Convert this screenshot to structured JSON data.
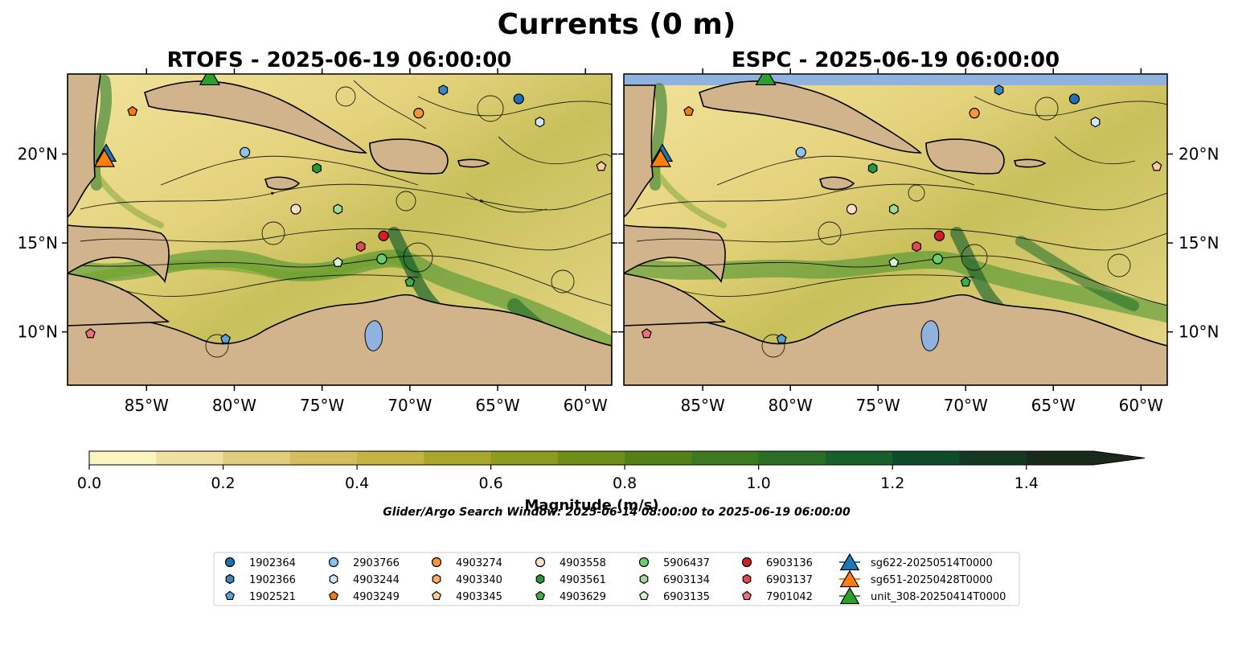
{
  "figure": {
    "title": "Currents (0 m)",
    "panels": [
      {
        "id": "rtofs",
        "title": "RTOFS - 2025-06-19 06:00:00"
      },
      {
        "id": "espc",
        "title": "ESPC - 2025-06-19 06:00:00"
      }
    ],
    "lon_ticks": [
      "85°W",
      "80°W",
      "75°W",
      "70°W",
      "65°W",
      "60°W"
    ],
    "lat_ticks": [
      "20°N",
      "15°N",
      "10°N"
    ],
    "extent": {
      "lon_min": -89.5,
      "lon_max": -58.5,
      "lat_min": 7.0,
      "lat_max": 24.5
    },
    "colorbar": {
      "label": "Magnitude (m/s)",
      "ticks": [
        "0.0",
        "0.2",
        "0.4",
        "0.6",
        "0.8",
        "1.0",
        "1.2",
        "1.4"
      ],
      "range": [
        0,
        1.5
      ],
      "extend": "max"
    },
    "search_window": "Glider/Argo Search Window: 2025-06-14 08:00:00 to 2025-06-19 06:00:00",
    "colors": {
      "land": "#d2b48c",
      "lake": "#8fb2df",
      "ocean_low": "#fbf4bc",
      "ocean_high": "#0b5c2b"
    }
  },
  "legend": [
    {
      "label": "1902364",
      "shape": "circle",
      "color": "#1f6fb4"
    },
    {
      "label": "1902366",
      "shape": "hexagon",
      "color": "#3a87c2"
    },
    {
      "label": "1902521",
      "shape": "pentagon",
      "color": "#5ba3d6"
    },
    {
      "label": "2903766",
      "shape": "circle",
      "color": "#8ec2ea"
    },
    {
      "label": "4903244",
      "shape": "hexagon",
      "color": "#cfe6f7"
    },
    {
      "label": "4903249",
      "shape": "pentagon",
      "color": "#f07f12"
    },
    {
      "label": "4903274",
      "shape": "circle",
      "color": "#f59536"
    },
    {
      "label": "4903340",
      "shape": "hexagon",
      "color": "#f8ad6b"
    },
    {
      "label": "4903345",
      "shape": "pentagon",
      "color": "#fccb9c"
    },
    {
      "label": "4903558",
      "shape": "circle",
      "color": "#fde0c8"
    },
    {
      "label": "4903561",
      "shape": "hexagon",
      "color": "#249a36"
    },
    {
      "label": "4903629",
      "shape": "pentagon",
      "color": "#3ab04a"
    },
    {
      "label": "5906437",
      "shape": "circle",
      "color": "#6ccd6c"
    },
    {
      "label": "6903134",
      "shape": "hexagon",
      "color": "#9ede92"
    },
    {
      "label": "6903135",
      "shape": "pentagon",
      "color": "#d3f5cb"
    },
    {
      "label": "6903136",
      "shape": "circle",
      "color": "#d21f25"
    },
    {
      "label": "6903137",
      "shape": "hexagon",
      "color": "#e04b52"
    },
    {
      "label": "7901042",
      "shape": "pentagon",
      "color": "#ec7379"
    },
    {
      "label": "sg622-20250514T0000",
      "shape": "triangle",
      "color": "#1f77b4"
    },
    {
      "label": "sg651-20250428T0000",
      "shape": "triangle",
      "color": "#ff7f0e"
    },
    {
      "label": "unit_308-20250414T0000",
      "shape": "triangle",
      "color": "#2ca02c"
    }
  ],
  "floats": [
    {
      "id": "1902364",
      "lon": -63.8,
      "lat": 23.1
    },
    {
      "id": "1902366",
      "lon": -68.1,
      "lat": 23.6
    },
    {
      "id": "1902521",
      "lon": -80.5,
      "lat": 9.6
    },
    {
      "id": "2903766",
      "lon": -79.4,
      "lat": 20.1
    },
    {
      "id": "4903244",
      "lon": -62.6,
      "lat": 21.8
    },
    {
      "id": "4903249",
      "lon": -85.8,
      "lat": 22.4
    },
    {
      "id": "4903274",
      "lon": -69.5,
      "lat": 22.3
    },
    {
      "id": "4903345",
      "lon": -59.1,
      "lat": 19.3
    },
    {
      "id": "4903558",
      "lon": -76.5,
      "lat": 16.9
    },
    {
      "id": "4903561",
      "lon": -75.3,
      "lat": 19.2
    },
    {
      "id": "4903629",
      "lon": -70.0,
      "lat": 12.8
    },
    {
      "id": "5906437",
      "lon": -71.6,
      "lat": 14.1
    },
    {
      "id": "6903134",
      "lon": -74.1,
      "lat": 16.9
    },
    {
      "id": "6903135",
      "lon": -74.1,
      "lat": 13.9
    },
    {
      "id": "6903136",
      "lon": -71.5,
      "lat": 15.4
    },
    {
      "id": "6903137",
      "lon": -72.8,
      "lat": 14.8
    },
    {
      "id": "7901042",
      "lon": -88.2,
      "lat": 9.9
    }
  ],
  "gliders": [
    {
      "id": "sg622-20250514T0000",
      "lon": -87.3,
      "lat": 20.0
    },
    {
      "id": "sg651-20250428T0000",
      "lon": -87.4,
      "lat": 19.7
    },
    {
      "id": "unit_308-20250414T0000",
      "lon": -81.4,
      "lat": 24.3
    }
  ]
}
